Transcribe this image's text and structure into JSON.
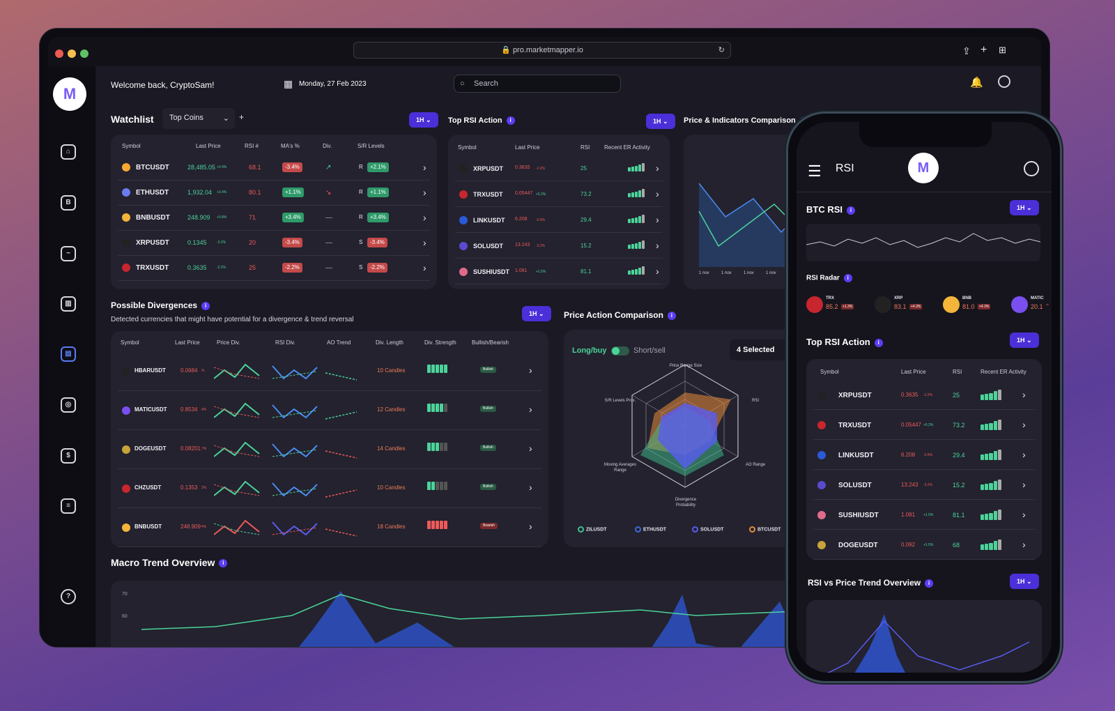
{
  "browser": {
    "url": "pro.marketmapper.io"
  },
  "header": {
    "welcome": "Welcome back, CryptoSam!",
    "date": "Monday, 27 Feb 2023",
    "search_placeholder": "Search"
  },
  "logo": "M",
  "watchlist": {
    "title": "Watchlist",
    "selector": "Top Coins",
    "interval": "1H",
    "columns": [
      "Symbol",
      "Last Price",
      "RSI #",
      "MA's %",
      "Div.",
      "S/R Levels"
    ],
    "rows": [
      {
        "symbol": "BTCUSDT",
        "price": "28,485.05",
        "chg": "+3.4%",
        "rsi": "68.1",
        "ma": "-3.4%",
        "div": "↗",
        "sr": "R",
        "srv": "+2.1%"
      },
      {
        "symbol": "ETHUSDT",
        "price": "1,932.04",
        "chg": "+3.4%",
        "rsi": "80.1",
        "ma": "+1.1%",
        "div": "↘",
        "sr": "R",
        "srv": "+1.1%"
      },
      {
        "symbol": "BNBUSDT",
        "price": "248.909",
        "chg": "+0.8%",
        "rsi": "71",
        "ma": "+3.4%",
        "div": "—",
        "sr": "R",
        "srv": "+3.4%"
      },
      {
        "symbol": "XRPUSDT",
        "price": "0.1345",
        "chg": "-3.2%",
        "rsi": "20",
        "ma": "-3.4%",
        "div": "—",
        "sr": "S",
        "srv": "-3.4%"
      },
      {
        "symbol": "TRXUSDT",
        "price": "0.3635",
        "chg": "-2.2%",
        "rsi": "25",
        "ma": "-2.2%",
        "div": "—",
        "sr": "S",
        "srv": "-2.2%"
      }
    ]
  },
  "top_rsi": {
    "title": "Top RSI Action",
    "interval": "1H",
    "columns": [
      "Symbol",
      "Last Price",
      "RSI",
      "Recent ER Activity"
    ],
    "rows": [
      {
        "symbol": "XRPUSDT",
        "price": "0.3635",
        "chg": "-2.2%",
        "rsi": "25"
      },
      {
        "symbol": "TRXUSDT",
        "price": "0.05447",
        "chg": "+5.2%",
        "rsi": "73.2"
      },
      {
        "symbol": "LINKUSDT",
        "price": "6.208",
        "chg": "-0.9%",
        "rsi": "29.4"
      },
      {
        "symbol": "SOLUSDT",
        "price": "13.243",
        "chg": "-3.2%",
        "rsi": "15.2"
      },
      {
        "symbol": "SUSHIUSDT",
        "price": "1.081",
        "chg": "+1.5%",
        "rsi": "81.1"
      }
    ]
  },
  "price_indicators": {
    "title": "Price & Indicators Comparison",
    "ticks": [
      "1 nov",
      "1 nov",
      "1 nov",
      "1 nov",
      "1 no"
    ]
  },
  "divergences": {
    "title": "Possible Divergences",
    "subtitle": "Detected currencies that might have potential for a divergence & trend reversal",
    "interval": "1H",
    "columns": [
      "Symbol",
      "Last Price",
      "Price Div.",
      "RSI Div.",
      "AO Trend",
      "Div. Length",
      "Div. Strength",
      "Bullish/Bearish"
    ],
    "rows": [
      {
        "symbol": "HBARUSDT",
        "price": "0.0684",
        "chg": "%",
        "len": "10 Candles",
        "kind": "Bullish"
      },
      {
        "symbol": "MATICUSDT",
        "price": "0.8534",
        "chg": "4%",
        "len": "12 Candles",
        "kind": "Bullish"
      },
      {
        "symbol": "DOGEUSDT",
        "price": "0.08201",
        "chg": "7%",
        "len": "14 Candles",
        "kind": "Bullish"
      },
      {
        "symbol": "CHZUSDT",
        "price": "0.1353",
        "chg": "2%",
        "len": "10 Candles",
        "kind": "Bullish"
      },
      {
        "symbol": "BNBUSDT",
        "price": "248.909",
        "chg": "4%",
        "len": "18 Candles",
        "kind": "Bearish"
      }
    ]
  },
  "price_action": {
    "title": "Price Action Comparison",
    "long": "Long/buy",
    "short": "Short/sell",
    "selected": "4 Selected",
    "axes": [
      "Price Range Size",
      "RSI",
      "AO Range",
      "Divergence Probability",
      "Moving Averages Range",
      "S/R Levels Prox."
    ],
    "legend": [
      "ZILUSDT",
      "ETHUSDT",
      "SOLUSDT",
      "BTCUSDT"
    ]
  },
  "macro": {
    "title": "Macro Trend Overview",
    "yticks": [
      "70",
      "60"
    ]
  },
  "phone": {
    "title": "RSI",
    "btc_rsi": "BTC RSI",
    "interval": "1H",
    "radar_title": "RSI Radar",
    "radar": [
      {
        "sym": "TRX",
        "val": "85.2",
        "chg": "+1.3%"
      },
      {
        "sym": "XRP",
        "val": "83.1",
        "chg": "+4.3%"
      },
      {
        "sym": "BNB",
        "val": "81.0",
        "chg": "+4.3%"
      },
      {
        "sym": "MATIC",
        "val": "20.1",
        "chg": ""
      }
    ],
    "top_title": "Top RSI Action",
    "columns": [
      "Symbol",
      "Last Price",
      "RSI",
      "Recent ER Activity"
    ],
    "rows": [
      {
        "symbol": "XRPUSDT",
        "price": "0.3635",
        "chg": "-2.2%",
        "rsi": "25"
      },
      {
        "symbol": "TRXUSDT",
        "price": "0.05447",
        "chg": "+5.2%",
        "rsi": "73.2"
      },
      {
        "symbol": "LINKUSDT",
        "price": "6.208",
        "chg": "-0.9%",
        "rsi": "29.4"
      },
      {
        "symbol": "SOLUSDT",
        "price": "13.243",
        "chg": "-3.2%",
        "rsi": "15.2"
      },
      {
        "symbol": "SUSHIUSDT",
        "price": "1.081",
        "chg": "+1.5%",
        "rsi": "81.1"
      },
      {
        "symbol": "DOGEUSDT",
        "price": "0.092",
        "chg": "+1.5%",
        "rsi": "68"
      }
    ],
    "trend_title": "RSI vs Price Trend Overview"
  },
  "colors": {
    "accent": "#5b3df5",
    "green": "#4cd39a",
    "red": "#ee5a5a",
    "bg": "#1a1924"
  }
}
